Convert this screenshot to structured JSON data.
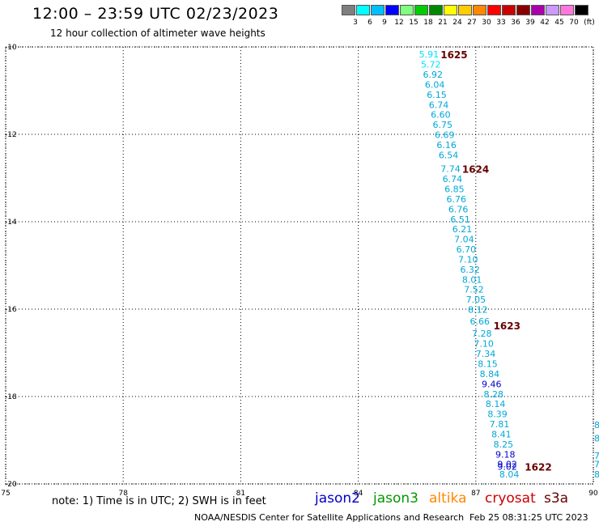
{
  "header": {
    "title": "12:00 – 23:59 UTC 02/23/2023",
    "subtitle": "12 hour collection of altimeter wave heights"
  },
  "legend": {
    "swatches": [
      {
        "color": "#7f7f7f",
        "label": "3"
      },
      {
        "color": "#00ffff",
        "label": "6"
      },
      {
        "color": "#00bfff",
        "label": "9"
      },
      {
        "color": "#0000ff",
        "label": "12"
      },
      {
        "color": "#7fff7f",
        "label": "15"
      },
      {
        "color": "#00cc00",
        "label": "18"
      },
      {
        "color": "#008800",
        "label": "21"
      },
      {
        "color": "#ffff00",
        "label": "24"
      },
      {
        "color": "#ffcc00",
        "label": "27"
      },
      {
        "color": "#ff8800",
        "label": "30"
      },
      {
        "color": "#ff0000",
        "label": "33"
      },
      {
        "color": "#cc0000",
        "label": "36"
      },
      {
        "color": "#880000",
        "label": "39"
      },
      {
        "color": "#aa00aa",
        "label": "42"
      },
      {
        "color": "#cc99ff",
        "label": "45"
      },
      {
        "color": "#ff77dd",
        "label": "70"
      },
      {
        "color": "#000000",
        "label": ""
      }
    ],
    "unit": "(ft)"
  },
  "chart_data": {
    "type": "scatter",
    "xlim": [
      75,
      90
    ],
    "ylim": [
      -20,
      -10
    ],
    "grid": true,
    "x_ticks": [
      "75",
      "78",
      "81",
      "84",
      "87",
      "90"
    ],
    "y_ticks": [
      "-10",
      "-12",
      "-14",
      "-16",
      "-18",
      "-20"
    ],
    "points": [
      {
        "lon": 85.55,
        "lat": -10.17,
        "swh": "5.91"
      },
      {
        "lon": 85.6,
        "lat": -10.4,
        "swh": "5.72"
      },
      {
        "lon": 85.65,
        "lat": -10.63,
        "swh": "6.92"
      },
      {
        "lon": 85.7,
        "lat": -10.86,
        "swh": "6.04"
      },
      {
        "lon": 85.75,
        "lat": -11.09,
        "swh": "6.15"
      },
      {
        "lon": 85.8,
        "lat": -11.32,
        "swh": "6.74"
      },
      {
        "lon": 85.85,
        "lat": -11.55,
        "swh": "6.60"
      },
      {
        "lon": 85.9,
        "lat": -11.78,
        "swh": "6.75"
      },
      {
        "lon": 85.95,
        "lat": -12.01,
        "swh": "6.69"
      },
      {
        "lon": 86.0,
        "lat": -12.24,
        "swh": "6.16"
      },
      {
        "lon": 86.05,
        "lat": -12.47,
        "swh": "6.54"
      },
      {
        "lon": 86.1,
        "lat": -12.79,
        "swh": "7.74"
      },
      {
        "lon": 86.15,
        "lat": -13.02,
        "swh": "6.74"
      },
      {
        "lon": 86.2,
        "lat": -13.25,
        "swh": "6.85"
      },
      {
        "lon": 86.25,
        "lat": -13.48,
        "swh": "6.76"
      },
      {
        "lon": 86.3,
        "lat": -13.71,
        "swh": "6.76"
      },
      {
        "lon": 86.35,
        "lat": -13.94,
        "swh": "6.51"
      },
      {
        "lon": 86.4,
        "lat": -14.17,
        "swh": "6.21"
      },
      {
        "lon": 86.45,
        "lat": -14.4,
        "swh": "7.04"
      },
      {
        "lon": 86.5,
        "lat": -14.63,
        "swh": "6.70"
      },
      {
        "lon": 86.55,
        "lat": -14.86,
        "swh": "7.10"
      },
      {
        "lon": 86.6,
        "lat": -15.09,
        "swh": "6.32"
      },
      {
        "lon": 86.65,
        "lat": -15.32,
        "swh": "8.01"
      },
      {
        "lon": 86.7,
        "lat": -15.55,
        "swh": "7.52"
      },
      {
        "lon": 86.75,
        "lat": -15.78,
        "swh": "7.05"
      },
      {
        "lon": 86.8,
        "lat": -16.01,
        "swh": "8.12"
      },
      {
        "lon": 86.85,
        "lat": -16.28,
        "swh": "6.66"
      },
      {
        "lon": 86.9,
        "lat": -16.56,
        "swh": "7.28"
      },
      {
        "lon": 86.95,
        "lat": -16.79,
        "swh": "7.10"
      },
      {
        "lon": 87.0,
        "lat": -17.02,
        "swh": "7.34"
      },
      {
        "lon": 87.05,
        "lat": -17.25,
        "swh": "8.15"
      },
      {
        "lon": 87.1,
        "lat": -17.48,
        "swh": "8.84"
      },
      {
        "lon": 87.15,
        "lat": -17.71,
        "swh": "9.46"
      },
      {
        "lon": 87.2,
        "lat": -17.94,
        "swh": "8.28"
      },
      {
        "lon": 87.25,
        "lat": -18.17,
        "swh": "8.14"
      },
      {
        "lon": 87.3,
        "lat": -18.4,
        "swh": "8.39"
      },
      {
        "lon": 87.35,
        "lat": -18.63,
        "swh": "7.81"
      },
      {
        "lon": 87.4,
        "lat": -18.86,
        "swh": "8.41"
      },
      {
        "lon": 87.45,
        "lat": -19.09,
        "swh": "8.25"
      },
      {
        "lon": 87.5,
        "lat": -19.32,
        "swh": "9.18"
      },
      {
        "lon": 87.55,
        "lat": -19.55,
        "swh": "9.02"
      },
      {
        "lon": 87.55,
        "lat": -19.6,
        "swh": "9.02"
      },
      {
        "lon": 87.6,
        "lat": -19.78,
        "swh": "8.04"
      }
    ],
    "time_labels": [
      {
        "lon": 86.1,
        "lat": -10.17,
        "text": "1625"
      },
      {
        "lon": 86.65,
        "lat": -12.79,
        "text": "1624"
      },
      {
        "lon": 87.45,
        "lat": -16.37,
        "text": "1623"
      },
      {
        "lon": 88.25,
        "lat": -19.6,
        "text": "1622"
      }
    ],
    "edge_marks": [
      {
        "lat": -18.65,
        "text": "8"
      },
      {
        "lat": -18.95,
        "text": "8"
      },
      {
        "lat": -19.35,
        "text": "7"
      },
      {
        "lat": -19.55,
        "text": "7"
      },
      {
        "lat": -19.78,
        "text": "8"
      }
    ]
  },
  "footer": {
    "note": "note: 1) Time is in UTC; 2) SWH is in feet",
    "satellites": [
      {
        "name": "jason2",
        "color": "#0000cc"
      },
      {
        "name": "jason3",
        "color": "#009900"
      },
      {
        "name": "altika",
        "color": "#ff8800"
      },
      {
        "name": "cryosat",
        "color": "#cc0000"
      },
      {
        "name": "s3a",
        "color": "#660000"
      }
    ],
    "credit": "NOAA/NESDIS Center for Satellite Applications and Research",
    "timestamp": "Feb 25 08:31:25 UTC 2023"
  },
  "colors": {
    "point_text": "#00a8d8",
    "point_text_light": "#00e0ff",
    "point_text_dark": "#0000cc",
    "time_label": "#660000",
    "grid": "#000000"
  }
}
